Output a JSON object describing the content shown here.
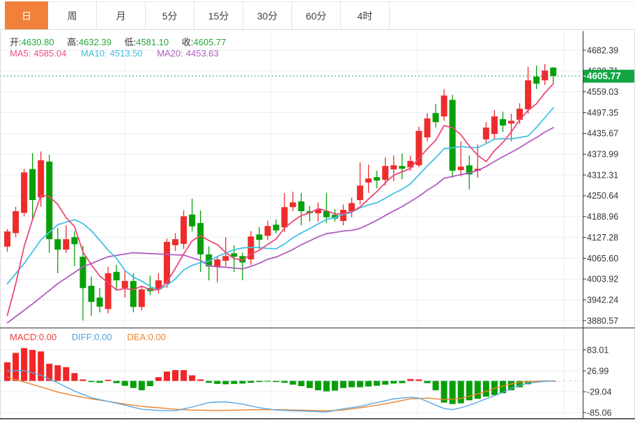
{
  "tabs": {
    "active_index": 0,
    "items": [
      {
        "label": "日"
      },
      {
        "label": "周"
      },
      {
        "label": "月"
      },
      {
        "label": "5分"
      },
      {
        "label": "15分"
      },
      {
        "label": "30分"
      },
      {
        "label": "60分"
      },
      {
        "label": "4时"
      }
    ]
  },
  "ohlc": {
    "open_label": "开:",
    "open": "4630.80",
    "high_label": "高:",
    "high": "4632.39",
    "low_label": "低:",
    "low": "4581.10",
    "close_label": "收:",
    "close": "4605.77"
  },
  "ma": {
    "ma5_label": "MA5:",
    "ma5": "4585.04",
    "ma10_label": "MA10:",
    "ma10": "4513.50",
    "ma20_label": "MA20:",
    "ma20": "4453.63"
  },
  "macd_row": {
    "macd_label": "MACD:",
    "macd": "0.00",
    "diff_label": "DIFF:",
    "diff": "0.00",
    "dea_label": "DEA:",
    "dea": "0.00"
  },
  "colors": {
    "up": "#ee2c2c",
    "down": "#08a008",
    "ma5": "#ec4879",
    "ma10": "#42c2e2",
    "ma20": "#b25cc0",
    "diff": "#57a7e3",
    "dea": "#f08228",
    "hist_up": "#f12525",
    "hist_down": "#089e08",
    "grid": "#e9eef4",
    "axis_text": "#333333",
    "border_dark": "#2f2f2f",
    "border_light": "#dcdcdc",
    "tag_bg": "#12a643",
    "dotted": "#22a34b",
    "zero_dash": "#a8d8e8",
    "tab_active_bg": "#f0803a",
    "value_green": "#22a83c"
  },
  "chart_data": {
    "type": "candlestick+macd",
    "main": {
      "type": "candlestick",
      "axis_labels": [
        "4682.39",
        "4620.71",
        "4559.03",
        "4497.35",
        "4435.67",
        "4373.99",
        "4312.31",
        "4250.64",
        "4188.96",
        "4127.28",
        "4065.60",
        "4003.92",
        "3942.24",
        "3880.57"
      ],
      "price_tag": "4605.77",
      "last_close": 4605.77,
      "legend": [
        "MA5",
        "MA10",
        "MA20"
      ],
      "candles_format": [
        "open",
        "high",
        "low",
        "close"
      ],
      "candles": [
        [
          4100,
          4152,
          4085,
          4145
        ],
        [
          4140,
          4218,
          4128,
          4205
        ],
        [
          4200,
          4330,
          4190,
          4320
        ],
        [
          4330,
          4377,
          4180,
          4238
        ],
        [
          4246,
          4382,
          4218,
          4356
        ],
        [
          4352,
          4372,
          4081,
          4122
        ],
        [
          4122,
          4155,
          4021,
          4091
        ],
        [
          4091,
          4163,
          4081,
          4122
        ],
        [
          4128,
          4146,
          4042,
          4107
        ],
        [
          4070,
          4103,
          3881,
          3977
        ],
        [
          3984,
          4011,
          3895,
          3936
        ],
        [
          3949,
          3977,
          3905,
          3922
        ],
        [
          3915,
          4040,
          3902,
          4021
        ],
        [
          4025,
          4046,
          3969,
          4000
        ],
        [
          3977,
          4029,
          3949,
          3998
        ],
        [
          3998,
          4021,
          3905,
          3921
        ],
        [
          3921,
          3984,
          3911,
          3973
        ],
        [
          3977,
          4014,
          3956,
          3968
        ],
        [
          3973,
          4021,
          3962,
          4000
        ],
        [
          3990,
          4124,
          3977,
          4114
        ],
        [
          4104,
          4140,
          4087,
          4122
        ],
        [
          4108,
          4207,
          4093,
          4190
        ],
        [
          4195,
          4242,
          4145,
          4160
        ],
        [
          4170,
          4207,
          4025,
          4077
        ],
        [
          4077,
          4101,
          4000,
          4041
        ],
        [
          4040,
          4073,
          3994,
          4062
        ],
        [
          4058,
          4128,
          4042,
          4072
        ],
        [
          4080,
          4104,
          4025,
          4070
        ],
        [
          4072,
          4082,
          4000,
          4053
        ],
        [
          4062,
          4146,
          4046,
          4130
        ],
        [
          4136,
          4158,
          4093,
          4120
        ],
        [
          4132,
          4177,
          4120,
          4161
        ],
        [
          4165,
          4181,
          4139,
          4148
        ],
        [
          4157,
          4259,
          4143,
          4217
        ],
        [
          4217,
          4263,
          4205,
          4231
        ],
        [
          4234,
          4259,
          4163,
          4205
        ],
        [
          4205,
          4221,
          4174,
          4199
        ],
        [
          4199,
          4231,
          4174,
          4210
        ],
        [
          4205,
          4259,
          4170,
          4187
        ],
        [
          4194,
          4211,
          4174,
          4183
        ],
        [
          4176,
          4225,
          4163,
          4209
        ],
        [
          4205,
          4245,
          4187,
          4229
        ],
        [
          4238,
          4350,
          4225,
          4281
        ],
        [
          4290,
          4343,
          4259,
          4302
        ],
        [
          4306,
          4325,
          4273,
          4296
        ],
        [
          4298,
          4364,
          4281,
          4339
        ],
        [
          4329,
          4370,
          4294,
          4341
        ],
        [
          4339,
          4376,
          4300,
          4331
        ],
        [
          4335,
          4370,
          4325,
          4354
        ],
        [
          4341,
          4455,
          4335,
          4443
        ],
        [
          4424,
          4496,
          4412,
          4480
        ],
        [
          4496,
          4523,
          4453,
          4469
        ],
        [
          4486,
          4567,
          4473,
          4548
        ],
        [
          4535,
          4550,
          4304,
          4325
        ],
        [
          4327,
          4412,
          4308,
          4337
        ],
        [
          4341,
          4370,
          4269,
          4314
        ],
        [
          4325,
          4403,
          4304,
          4331
        ],
        [
          4418,
          4469,
          4407,
          4453
        ],
        [
          4434,
          4505,
          4418,
          4486
        ],
        [
          4478,
          4500,
          4440,
          4459
        ],
        [
          4465,
          4494,
          4412,
          4473
        ],
        [
          4476,
          4525,
          4463,
          4509
        ],
        [
          4507,
          4633,
          4494,
          4593
        ],
        [
          4604,
          4637,
          4567,
          4583
        ],
        [
          4593,
          4641,
          4579,
          4622
        ],
        [
          4630.8,
          4632.39,
          4581.1,
          4605.77
        ]
      ],
      "ma_windows": {
        "ma5": 5,
        "ma10": 10,
        "ma20": 20
      },
      "ma5_head": [
        [
          0,
          3896
        ],
        [
          1,
          3990
        ],
        [
          2,
          4100
        ],
        [
          3,
          4180
        ]
      ],
      "ma10_head": [
        [
          0,
          3990
        ],
        [
          2,
          4050
        ],
        [
          4,
          4120
        ],
        [
          6,
          4165
        ],
        [
          8,
          4180
        ]
      ],
      "ma20_head": [
        [
          0,
          3874
        ],
        [
          3,
          3930
        ],
        [
          6,
          3990
        ],
        [
          9,
          4040
        ],
        [
          12,
          4070
        ],
        [
          15,
          4082
        ],
        [
          18,
          4078
        ]
      ]
    },
    "macd": {
      "type": "bar+lines",
      "axis_labels": [
        "83.01",
        "26.99",
        "-29.04",
        "-85.06"
      ],
      "histogram": [
        50,
        75,
        88,
        83,
        79,
        46,
        42,
        37,
        21,
        4,
        -3,
        -5,
        3,
        -6,
        -13,
        -19,
        -25,
        -14,
        10,
        25,
        29,
        29,
        15,
        4,
        -5,
        -8,
        -9,
        -8,
        -7,
        -5,
        -3,
        -2,
        -3,
        -5,
        -10,
        -14,
        -19,
        -25,
        -28,
        -26,
        -19,
        -17,
        -17,
        -15,
        -13,
        -10,
        -7,
        -6,
        5,
        4,
        -6,
        -25,
        -58,
        -62,
        -60,
        -52,
        -48,
        -42,
        -38,
        -33,
        -25,
        -17,
        -9,
        -4,
        -2,
        0
      ],
      "diff_anchors": [
        [
          0,
          27
        ],
        [
          2,
          28
        ],
        [
          4,
          15
        ],
        [
          6,
          -5
        ],
        [
          8,
          -27
        ],
        [
          10,
          -45
        ],
        [
          12,
          -55
        ],
        [
          14,
          -65
        ],
        [
          16,
          -76
        ],
        [
          18,
          -79
        ],
        [
          20,
          -80
        ],
        [
          22,
          -70
        ],
        [
          24,
          -58
        ],
        [
          26,
          -56
        ],
        [
          28,
          -62
        ],
        [
          30,
          -72
        ],
        [
          32,
          -78
        ],
        [
          34,
          -80
        ],
        [
          36,
          -81
        ],
        [
          38,
          -83
        ],
        [
          40,
          -75
        ],
        [
          42,
          -68
        ],
        [
          44,
          -58
        ],
        [
          46,
          -48
        ],
        [
          48,
          -44
        ],
        [
          49,
          -46
        ],
        [
          50,
          -55
        ],
        [
          51,
          -65
        ],
        [
          52,
          -74
        ],
        [
          53,
          -77
        ],
        [
          54,
          -72
        ],
        [
          55,
          -65
        ],
        [
          56,
          -57
        ],
        [
          57,
          -48
        ],
        [
          58,
          -40
        ],
        [
          59,
          -30
        ],
        [
          60,
          -20
        ],
        [
          61,
          -12
        ],
        [
          62,
          -6
        ],
        [
          63,
          -3
        ],
        [
          64,
          -1
        ],
        [
          65,
          0
        ]
      ],
      "dea_anchors": [
        [
          0,
          10
        ],
        [
          2,
          -3
        ],
        [
          4,
          -16
        ],
        [
          6,
          -30
        ],
        [
          8,
          -40
        ],
        [
          10,
          -48
        ],
        [
          12,
          -55
        ],
        [
          14,
          -62
        ],
        [
          16,
          -68
        ],
        [
          18,
          -72
        ],
        [
          20,
          -76
        ],
        [
          22,
          -78
        ],
        [
          24,
          -79
        ],
        [
          26,
          -79
        ],
        [
          28,
          -78
        ],
        [
          30,
          -77
        ],
        [
          32,
          -77
        ],
        [
          34,
          -78
        ],
        [
          36,
          -79
        ],
        [
          38,
          -80
        ],
        [
          40,
          -78
        ],
        [
          42,
          -72
        ],
        [
          44,
          -65
        ],
        [
          46,
          -57
        ],
        [
          48,
          -48
        ],
        [
          50,
          -46
        ],
        [
          52,
          -50
        ],
        [
          54,
          -47
        ],
        [
          56,
          -35
        ],
        [
          57,
          -28
        ],
        [
          58,
          -20
        ],
        [
          59,
          -14
        ],
        [
          60,
          -8
        ],
        [
          61,
          -4
        ],
        [
          62,
          -2
        ],
        [
          64,
          0
        ],
        [
          65,
          0
        ]
      ]
    }
  }
}
